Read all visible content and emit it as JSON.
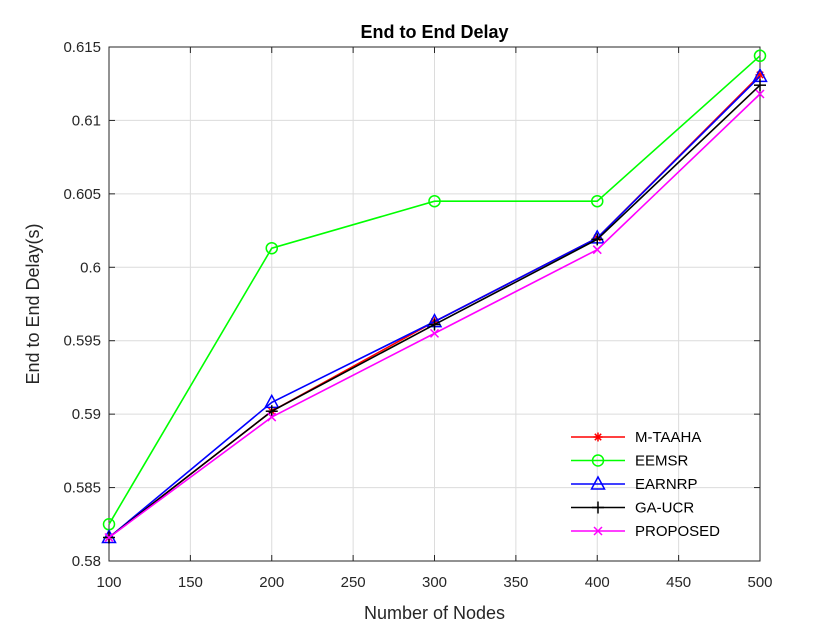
{
  "chart_data": {
    "type": "line",
    "title": "End to End Delay",
    "xlabel": "Number of Nodes",
    "ylabel": "End to End Delay(s)",
    "xlim": [
      100,
      500
    ],
    "ylim": [
      0.58,
      0.615
    ],
    "xticks": [
      100,
      150,
      200,
      250,
      300,
      350,
      400,
      450,
      500
    ],
    "yticks": [
      0.58,
      0.585,
      0.59,
      0.595,
      0.6,
      0.605,
      0.61,
      0.615
    ],
    "ytick_labels": [
      "0.58",
      "0.585",
      "0.59",
      "0.595",
      "0.6",
      "0.605",
      "0.61",
      "0.615"
    ],
    "grid": true,
    "legend_position": "bottom-right",
    "x": [
      100,
      200,
      300,
      400,
      500
    ],
    "series": [
      {
        "name": "M-TAAHA",
        "color": "#ff0000",
        "marker": "asterisk",
        "values": [
          0.5816,
          0.5902,
          0.5963,
          0.602,
          0.6131
        ]
      },
      {
        "name": "EEMSR",
        "color": "#00ff00",
        "marker": "circle",
        "values": [
          0.5825,
          0.6013,
          0.6045,
          0.6045,
          0.6144
        ]
      },
      {
        "name": "EARNRP",
        "color": "#0000ff",
        "marker": "triangle",
        "values": [
          0.5816,
          0.5908,
          0.5963,
          0.602,
          0.613
        ]
      },
      {
        "name": "GA-UCR",
        "color": "#000000",
        "marker": "plus",
        "values": [
          0.5816,
          0.5902,
          0.5961,
          0.6019,
          0.6124
        ]
      },
      {
        "name": "PROPOSED",
        "color": "#ff00ff",
        "marker": "x",
        "values": [
          0.5816,
          0.5898,
          0.5955,
          0.6012,
          0.6118
        ]
      }
    ]
  }
}
